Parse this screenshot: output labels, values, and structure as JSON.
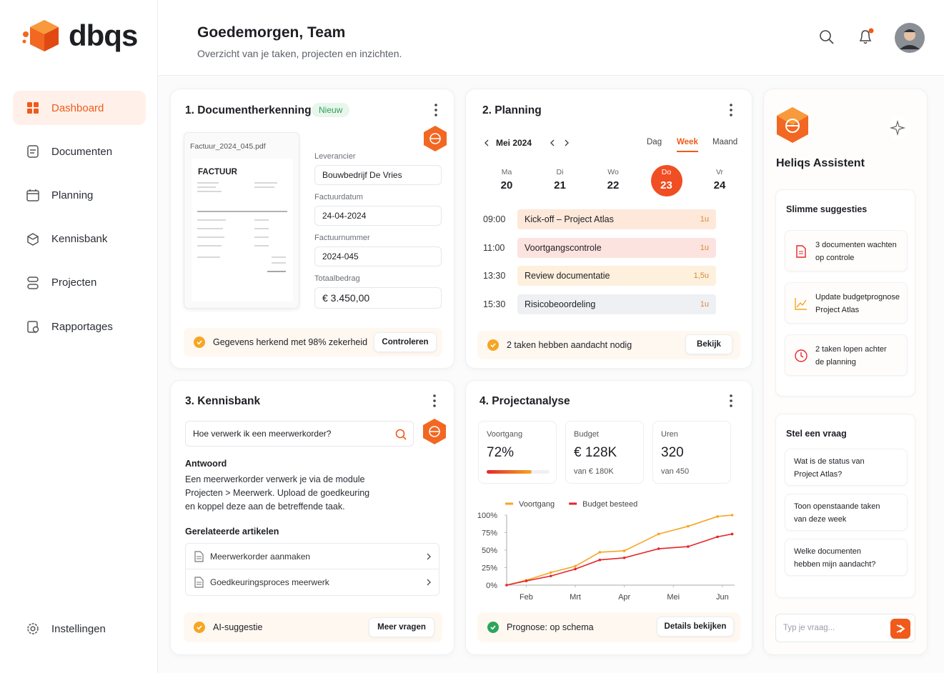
{
  "brand": "dbqs",
  "nav": {
    "items": [
      "Dashboard",
      "Documenten",
      "Planning",
      "Kennisbank",
      "Projecten",
      "Rapportages"
    ],
    "active": 0,
    "settings": "Instellingen"
  },
  "header": {
    "title": "Goedemorgen, Team",
    "subtitle": "Overzicht van je taken, projecten en inzichten."
  },
  "documents": {
    "title": "1. Documentherkenning",
    "badge": "Nieuw",
    "file": "Factuur_2024_045.pdf",
    "invoice_heading": "FACTUUR",
    "fields": [
      {
        "label": "Leverancier",
        "value": "Bouwbedrijf De Vries"
      },
      {
        "label": "Factuurdatum",
        "value": "24-04-2024"
      },
      {
        "label": "Factuurnummer",
        "value": "2024-045"
      },
      {
        "label": "Totaalbedrag",
        "value": "€ 3.450,00"
      }
    ],
    "status": "Gegevens herkend met 98% zekerheid",
    "button": "Controleren"
  },
  "planning": {
    "title": "2. Planning",
    "month": "Mei 2024",
    "views": [
      "Dag",
      "Week",
      "Maand"
    ],
    "active_view": 1,
    "days": [
      {
        "dow": "Ma",
        "date": "20"
      },
      {
        "dow": "Di",
        "date": "21"
      },
      {
        "dow": "Wo",
        "date": "22"
      },
      {
        "dow": "Do",
        "date": "23"
      },
      {
        "dow": "Vr",
        "date": "24"
      }
    ],
    "active_day": 3,
    "events": [
      {
        "time": "09:00",
        "title": "Kick-off – Project Atlas",
        "duration": "1u",
        "color": "#fde8da"
      },
      {
        "time": "11:00",
        "title": "Voortgangscontrole",
        "duration": "1u",
        "color": "#fde3df"
      },
      {
        "time": "13:30",
        "title": "Review documentatie",
        "duration": "1,5u",
        "color": "#fdf0dd"
      },
      {
        "time": "15:30",
        "title": "Risicobeoordeling",
        "duration": "1u",
        "color": "#eef0f4"
      }
    ],
    "status": "2 taken hebben aandacht nodig",
    "button": "Bekijk"
  },
  "knowledge": {
    "title": "3. Kennisbank",
    "query": "Hoe verwerk ik een meerwerkorder?",
    "answer_heading": "Antwoord",
    "answer_lines": [
      "Een meerwerkorder verwerk je via de module",
      "Projecten > Meerwerk. Upload de goedkeuring",
      "en koppel deze aan de betreffende taak."
    ],
    "related_heading": "Gerelateerde artikelen",
    "articles": [
      "Meerwerkorder aanmaken",
      "Goedkeuringsproces meerwerk"
    ],
    "status": "AI-suggestie",
    "button": "Meer vragen"
  },
  "analysis": {
    "title": "4. Projectanalyse",
    "kpis": [
      {
        "label": "Voortgang",
        "value": "72%",
        "progress": 72
      },
      {
        "label": "Budget",
        "value": "€ 128K",
        "sub": "van € 180K"
      },
      {
        "label": "Uren",
        "value": "320",
        "sub": "van 450"
      }
    ],
    "status": "Prognose: op schema",
    "button": "Details bekijken"
  },
  "chart_data": {
    "type": "line",
    "x": [
      1.6,
      2,
      2.5,
      3,
      3.5,
      4,
      4.7,
      5.3,
      5.9,
      6.2
    ],
    "xlim": [
      1.6,
      6.25
    ],
    "xticks": [
      {
        "value": 2,
        "label": "Feb"
      },
      {
        "value": 3,
        "label": "Mrt"
      },
      {
        "value": 4,
        "label": "Apr"
      },
      {
        "value": 5,
        "label": "Mei"
      },
      {
        "value": 6,
        "label": "Jun"
      }
    ],
    "ylim": [
      0,
      100
    ],
    "yticks": [
      {
        "value": 0,
        "label": "0%"
      },
      {
        "value": 25,
        "label": "25%"
      },
      {
        "value": 50,
        "label": "50%"
      },
      {
        "value": 75,
        "label": "75%"
      },
      {
        "value": 100,
        "label": "100%"
      }
    ],
    "series": [
      {
        "name": "Voortgang",
        "color": "#f5a623",
        "values": [
          0,
          7,
          18,
          27,
          47,
          49,
          73,
          84,
          98,
          100
        ]
      },
      {
        "name": "Budget besteed",
        "color": "#e5262b",
        "values": [
          0,
          6,
          13,
          23,
          36,
          39,
          52,
          55,
          69,
          73
        ]
      }
    ],
    "legend": "top"
  },
  "assistant": {
    "title": "Heliqs Assistent",
    "suggestions_heading": "Slimme suggesties",
    "suggestions": [
      [
        "3 documenten wachten",
        "op controle"
      ],
      [
        "Update budgetprognose",
        "Project Atlas"
      ],
      [
        "2 taken lopen achter",
        "de planning"
      ]
    ],
    "ask_heading": "Stel een vraag",
    "questions": [
      [
        "Wat is de status van",
        "Project Atlas?"
      ],
      [
        "Toon openstaande taken",
        "van deze week"
      ],
      [
        "Welke documenten",
        "hebben mijn aandacht?"
      ]
    ],
    "input_placeholder": "Typ je vraag..."
  }
}
